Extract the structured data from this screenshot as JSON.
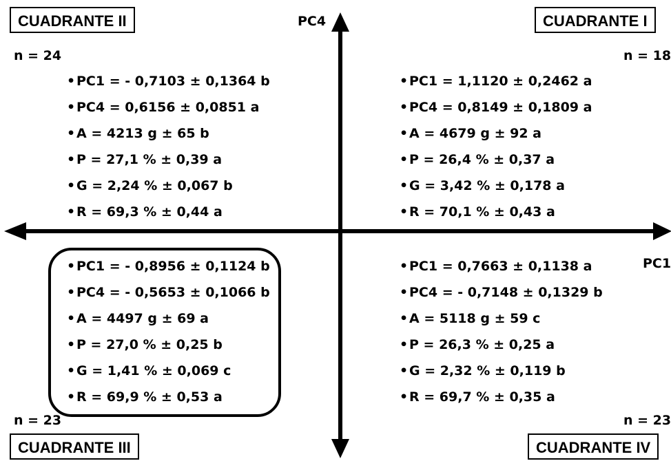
{
  "axes": {
    "vertical_label": "PC4",
    "horizontal_label": "PC1"
  },
  "quadrants": {
    "q1": {
      "title": "CUADRANTE I",
      "n": "n = 18",
      "stats": [
        "PC1 = 1,1120 ± 0,2462 a",
        "PC4 = 0,8149 ± 0,1809 a",
        "A = 4679 g ± 92 a",
        "P = 26,4 % ± 0,37 a",
        "G = 3,42 % ± 0,178 a",
        "R = 70,1 % ± 0,43 a"
      ]
    },
    "q2": {
      "title": "CUADRANTE II",
      "n": "n = 24",
      "stats": [
        "PC1 = - 0,7103 ± 0,1364 b",
        "PC4 = 0,6156 ± 0,0851 a",
        "A = 4213 g ± 65 b",
        "P = 27,1 % ± 0,39 a",
        "G = 2,24 % ± 0,067 b",
        "R = 69,3 % ± 0,44 a"
      ]
    },
    "q3": {
      "title": "CUADRANTE III",
      "n": "n = 23",
      "stats": [
        "PC1 = - 0,8956 ± 0,1124 b",
        "PC4 = - 0,5653 ± 0,1066 b",
        "A = 4497 g ± 69 a",
        "P = 27,0 % ± 0,25 b",
        "G = 1,41 % ± 0,069 c",
        "R = 69,9 % ± 0,53 a"
      ]
    },
    "q4": {
      "title": "CUADRANTE IV",
      "n": "n = 23",
      "stats": [
        "PC1 = 0,7663 ± 0,1138 a",
        "PC4 = - 0,7148 ± 0,1329 b",
        "A = 5118 g ± 59 c",
        "P = 26,3 % ± 0,25 a",
        "G = 2,32 % ± 0,119 b",
        "R = 69,7 % ± 0,35 a"
      ]
    }
  }
}
